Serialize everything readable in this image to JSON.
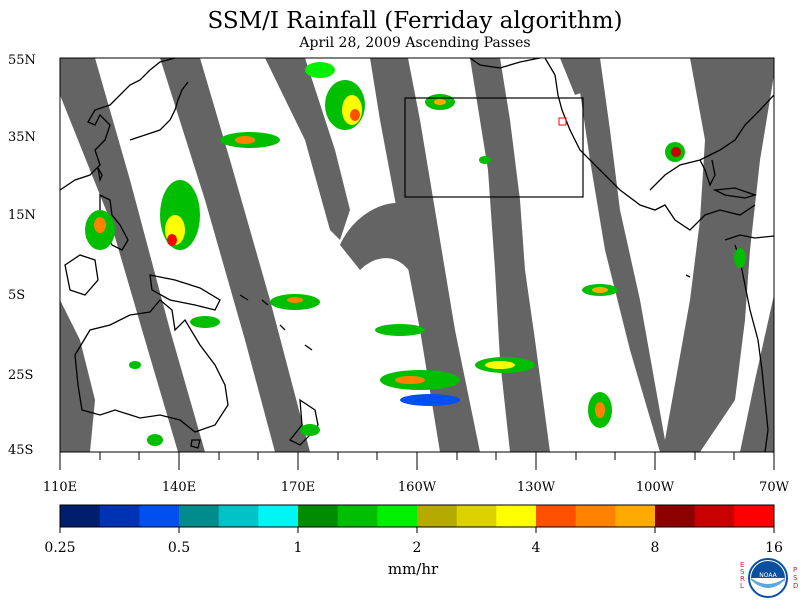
{
  "title": "SSM/I Rainfall (Ferriday algorithm)",
  "subtitle": "April 28, 2009  Ascending Passes",
  "lat_labels": [
    "55N",
    "35N",
    "15N",
    "5S",
    "25S",
    "45S"
  ],
  "lon_labels": [
    "110E",
    "140E",
    "170E",
    "160W",
    "130W",
    "100W",
    "70W"
  ],
  "colorbar": {
    "colors": [
      "#001e6e",
      "#0032b4",
      "#0050f0",
      "#008c8c",
      "#00c3c8",
      "#00f5f5",
      "#008c00",
      "#00be00",
      "#00f000",
      "#b4aa00",
      "#dcd200",
      "#ffff00",
      "#ff5000",
      "#ff8200",
      "#ffaa00",
      "#8c0000",
      "#c80000",
      "#ff0000"
    ],
    "tick_labels": [
      "0.25",
      "0.5",
      "1",
      "2",
      "4",
      "8",
      "16"
    ],
    "units": "mm/hr"
  },
  "logo": {
    "name": "noaa-logo",
    "text": "NOAA",
    "side_left": "ESRL",
    "side_right": "PSD",
    "colors": {
      "blue": "#0a4fa0",
      "sky": "#5aa8e0",
      "red": "#d02030"
    }
  },
  "map_colors": {
    "no_data": "#646464",
    "coast": "#000000"
  }
}
